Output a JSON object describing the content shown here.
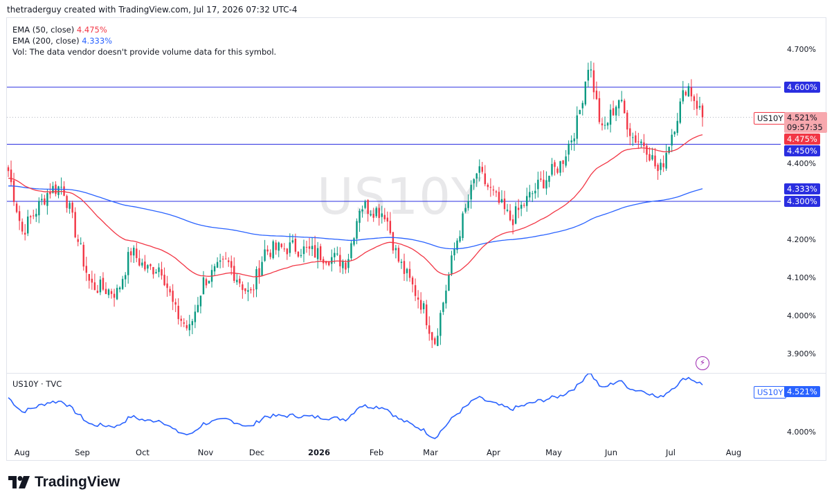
{
  "header": {
    "attribution": "thetraderguy created with TradingView.com, Jul 17, 2026 07:32 UTC-4"
  },
  "legend": {
    "ema50_label": "EMA (50, close)",
    "ema50_value": "4.475%",
    "ema200_label": "EMA (200, close)",
    "ema200_value": "4.333%",
    "vol_text": "Vol: The data vendor doesn't provide volume data for this symbol."
  },
  "watermark": "US10Y",
  "price_axis": [
    "4.700%",
    "4.400%",
    "4.200%",
    "4.100%",
    "4.000%",
    "3.900%"
  ],
  "price_tags": {
    "level_460": "4.600%",
    "level_445": "4.450%",
    "level_430": "4.300%",
    "ema50": "4.475%",
    "ema200": "4.333%",
    "symbol": "US10Y",
    "last": "4.521%",
    "countdown": "09:57:35"
  },
  "lower_pane": {
    "label": "US10Y · TVC",
    "symbol": "US10Y",
    "last": "4.521%",
    "axis_label": "4.000%"
  },
  "time_axis": [
    {
      "label": "Aug",
      "bold": false
    },
    {
      "label": "Sep",
      "bold": false
    },
    {
      "label": "Oct",
      "bold": false
    },
    {
      "label": "Nov",
      "bold": false
    },
    {
      "label": "Dec",
      "bold": false
    },
    {
      "label": "2026",
      "bold": true
    },
    {
      "label": "Feb",
      "bold": false
    },
    {
      "label": "Mar",
      "bold": false
    },
    {
      "label": "Apr",
      "bold": false
    },
    {
      "label": "May",
      "bold": false
    },
    {
      "label": "Jun",
      "bold": false
    },
    {
      "label": "Jul",
      "bold": false
    },
    {
      "label": "Aug",
      "bold": false
    }
  ],
  "footer": {
    "brand": "TradingView"
  },
  "colors": {
    "up": "#089981",
    "down": "#f23645",
    "ema50": "#f23645",
    "ema200": "#2962ff",
    "hline": "#2a2ee0",
    "line": "#2962ff"
  },
  "chart_data": {
    "type": "candlestick",
    "symbol": "US10Y",
    "ylim": [
      3.86,
      4.73
    ],
    "horizontal_levels": [
      4.6,
      4.45,
      4.3
    ],
    "last_close": 4.521,
    "ema50_last": 4.475,
    "ema200_last": 4.333,
    "close_path": [
      {
        "date": "Jul 21",
        "close": 4.38
      },
      {
        "date": "Aug 1",
        "close": 4.22
      },
      {
        "date": "Aug 15",
        "close": 4.33
      },
      {
        "date": "Aug 22",
        "close": 4.34
      },
      {
        "date": "Sep 5",
        "close": 4.08
      },
      {
        "date": "Sep 19",
        "close": 4.06
      },
      {
        "date": "Sep 26",
        "close": 4.17
      },
      {
        "date": "Oct 3",
        "close": 4.12
      },
      {
        "date": "Oct 10",
        "close": 4.13
      },
      {
        "date": "Oct 17",
        "close": 4.01
      },
      {
        "date": "Oct 24",
        "close": 3.96
      },
      {
        "date": "Oct 31",
        "close": 4.09
      },
      {
        "date": "Nov 14",
        "close": 4.14
      },
      {
        "date": "Nov 28",
        "close": 4.05
      },
      {
        "date": "Dec 5",
        "close": 4.17
      },
      {
        "date": "Dec 19",
        "close": 4.18
      },
      {
        "date": "Jan 2",
        "close": 4.16
      },
      {
        "date": "Jan 16",
        "close": 4.14
      },
      {
        "date": "Jan 23",
        "close": 4.29
      },
      {
        "date": "Feb 6",
        "close": 4.27
      },
      {
        "date": "Feb 13",
        "close": 4.15
      },
      {
        "date": "Feb 27",
        "close": 4.03
      },
      {
        "date": "Mar 3",
        "close": 3.93
      },
      {
        "date": "Mar 13",
        "close": 4.18
      },
      {
        "date": "Mar 24",
        "close": 4.38
      },
      {
        "date": "Apr 3",
        "close": 4.3
      },
      {
        "date": "Apr 10",
        "close": 4.25
      },
      {
        "date": "Apr 24",
        "close": 4.34
      },
      {
        "date": "May 5",
        "close": 4.4
      },
      {
        "date": "May 14",
        "close": 4.51
      },
      {
        "date": "May 20",
        "close": 4.67
      },
      {
        "date": "May 27",
        "close": 4.48
      },
      {
        "date": "Jun 5",
        "close": 4.57
      },
      {
        "date": "Jun 12",
        "close": 4.47
      },
      {
        "date": "Jun 19",
        "close": 4.45
      },
      {
        "date": "Jun 26",
        "close": 4.37
      },
      {
        "date": "Jul 1",
        "close": 4.47
      },
      {
        "date": "Jul 9",
        "close": 4.61
      },
      {
        "date": "Jul 17",
        "close": 4.521
      }
    ]
  }
}
